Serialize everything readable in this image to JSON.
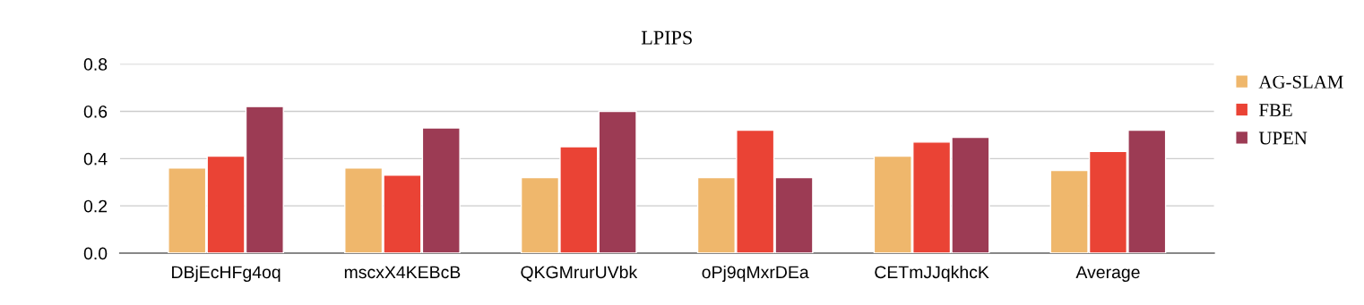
{
  "chart_data": {
    "type": "bar",
    "title": "LPIPS",
    "categories": [
      "DBjEcHFg4oq",
      "mscxX4KEBcB",
      "QKGMrurUVbk",
      "oPj9qMxrDEa",
      "CETmJJqkhcK",
      "Average"
    ],
    "series": [
      {
        "name": "AG-SLAM",
        "color": "#efb76c",
        "values": [
          0.36,
          0.36,
          0.32,
          0.32,
          0.41,
          0.35
        ]
      },
      {
        "name": "FBE",
        "color": "#ea4335",
        "values": [
          0.41,
          0.33,
          0.45,
          0.52,
          0.47,
          0.43
        ]
      },
      {
        "name": "UPEN",
        "color": "#9c3b54",
        "values": [
          0.62,
          0.53,
          0.6,
          0.32,
          0.49,
          0.52
        ]
      }
    ],
    "ylim": [
      0,
      0.8
    ],
    "yticks": [
      {
        "value": 0,
        "label": "0.0"
      },
      0.2,
      0.4,
      0.6,
      0.8
    ],
    "grid": "y",
    "legend": "right"
  }
}
